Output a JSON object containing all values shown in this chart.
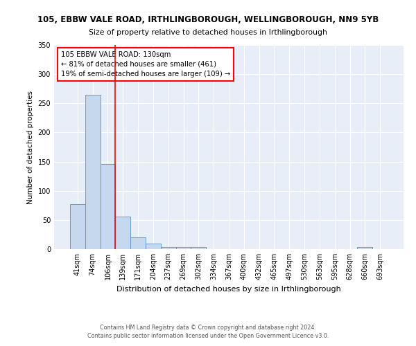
{
  "title": "105, EBBW VALE ROAD, IRTHLINGBOROUGH, WELLINGBOROUGH, NN9 5YB",
  "subtitle": "Size of property relative to detached houses in Irthlingborough",
  "xlabel": "Distribution of detached houses by size in Irthlingborough",
  "ylabel": "Number of detached properties",
  "footer_line1": "Contains HM Land Registry data © Crown copyright and database right 2024.",
  "footer_line2": "Contains public sector information licensed under the Open Government Licence v3.0.",
  "categories": [
    "41sqm",
    "74sqm",
    "106sqm",
    "139sqm",
    "171sqm",
    "204sqm",
    "237sqm",
    "269sqm",
    "302sqm",
    "334sqm",
    "367sqm",
    "400sqm",
    "432sqm",
    "465sqm",
    "497sqm",
    "530sqm",
    "563sqm",
    "595sqm",
    "628sqm",
    "660sqm",
    "693sqm"
  ],
  "values": [
    77,
    265,
    146,
    56,
    20,
    9,
    4,
    4,
    3,
    0,
    0,
    0,
    0,
    0,
    0,
    0,
    0,
    0,
    0,
    3,
    0
  ],
  "bar_color": "#c5d8ed",
  "bar_edge_color": "#5b8fc9",
  "background_color": "#e8eef8",
  "property_line_x": 2.5,
  "annotation_text_line1": "105 EBBW VALE ROAD: 130sqm",
  "annotation_text_line2": "← 81% of detached houses are smaller (461)",
  "annotation_text_line3": "19% of semi-detached houses are larger (109) →",
  "ylim": [
    0,
    350
  ],
  "yticks": [
    0,
    50,
    100,
    150,
    200,
    250,
    300,
    350
  ]
}
